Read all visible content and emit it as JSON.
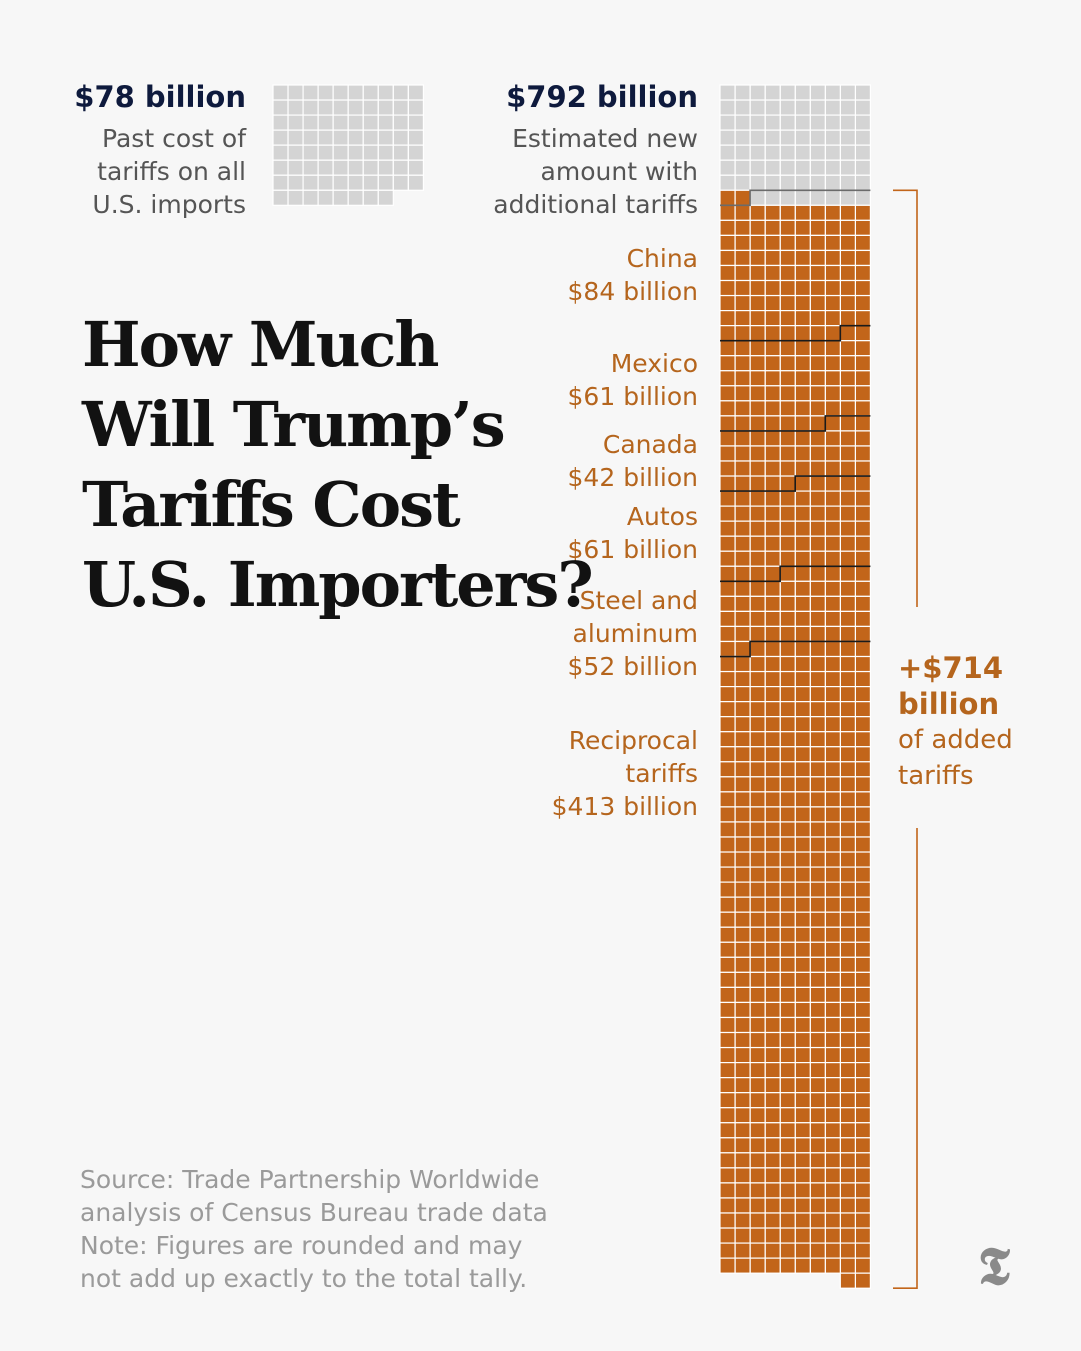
{
  "headline": {
    "lines": [
      "How Much",
      "Will Trump’s",
      "Tariffs Cost",
      "U.S. Importers?"
    ]
  },
  "past": {
    "value": "$78 billion",
    "desc_lines": [
      "Past cost of",
      "tariffs on all",
      "U.S. imports"
    ]
  },
  "estimated": {
    "value": "$792 billion",
    "desc_lines": [
      "Estimated new",
      "amount with",
      "additional tariffs"
    ]
  },
  "added": {
    "value_lines": [
      "+$714",
      "billion"
    ],
    "desc_lines": [
      "of added",
      "tariffs"
    ]
  },
  "footnote": {
    "lines": [
      "Source: Trade Partnership Worldwide",
      "analysis of Census Bureau trade data",
      "Note: Figures are rounded and may",
      "not add up exactly to the total tally."
    ]
  },
  "logo": {
    "glyph": "T",
    "icon": "nyt-logo-icon"
  },
  "colors": {
    "background": "#f7f7f7",
    "existing": "#d4d4d4",
    "added": "#c2651a",
    "label": "#b5651d",
    "bracket": "#c2651a",
    "divider": "#1a1a1a",
    "heading": "#0e1a3d"
  },
  "chart_data": {
    "type": "waffle",
    "unit": "$1 billion per square",
    "existing": {
      "label": "$78 billion",
      "value": 78
    },
    "total": {
      "label": "$792 billion",
      "value": 792
    },
    "segments": [
      {
        "lines": [
          "China",
          "$84 billion"
        ],
        "value": 84
      },
      {
        "lines": [
          "Mexico",
          "$61 billion"
        ],
        "value": 61
      },
      {
        "lines": [
          "Canada",
          "$42 billion"
        ],
        "value": 42
      },
      {
        "lines": [
          "Autos",
          "$61 billion"
        ],
        "value": 61
      },
      {
        "lines": [
          "Steel and",
          "aluminum",
          "$52 billion"
        ],
        "value": 52
      },
      {
        "lines": [
          "Reciprocal",
          "tariffs",
          "$413 billion"
        ],
        "value": 413
      }
    ],
    "added_total": 714
  }
}
